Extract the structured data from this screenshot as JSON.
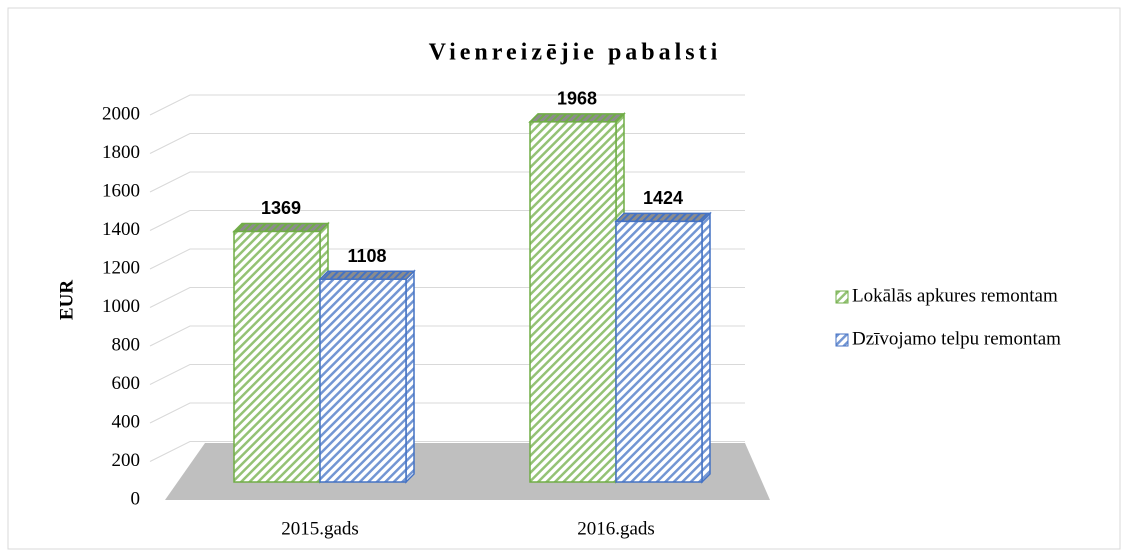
{
  "chart_data": {
    "type": "bar3d",
    "title": "Vienreizējie pabalsti",
    "y_label": "EUR",
    "categories": [
      "2015.gads",
      "2016.gads"
    ],
    "series": [
      {
        "name": "Lokālās apkures remontam",
        "color": "#70ad47",
        "values": [
          1369,
          1968
        ]
      },
      {
        "name": "Dzīvojamo telpu remontam",
        "color": "#4472c4",
        "values": [
          1108,
          1424
        ]
      }
    ],
    "ylim": [
      0,
      2000
    ],
    "yticks": [
      0,
      200,
      400,
      600,
      800,
      1000,
      1200,
      1400,
      1600,
      1800,
      2000
    ],
    "grid": true,
    "legend": "right"
  }
}
